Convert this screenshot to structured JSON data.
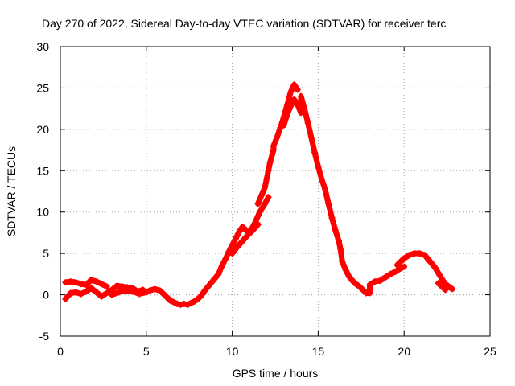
{
  "chart_data": {
    "type": "scatter",
    "title": "Day 270 of 2022, Sidereal Day-to-day VTEC variation (SDTVAR) for receiver terc",
    "xlabel": "GPS time / hours",
    "ylabel": "SDTVAR / TECUs",
    "xlim": [
      0,
      25
    ],
    "ylim": [
      -5,
      30
    ],
    "xticks": [
      0,
      5,
      10,
      15,
      20,
      25
    ],
    "yticks": [
      -5,
      0,
      5,
      10,
      15,
      20,
      25,
      30
    ],
    "grid": true,
    "series": [
      {
        "name": "SDTVAR",
        "color": "#ff0000",
        "marker": "plus",
        "points": [
          [
            0.3,
            1.5
          ],
          [
            0.6,
            1.6
          ],
          [
            0.9,
            1.5
          ],
          [
            1.2,
            1.3
          ],
          [
            1.5,
            1.2
          ],
          [
            1.8,
            1.8
          ],
          [
            2.1,
            1.6
          ],
          [
            2.4,
            1.3
          ],
          [
            2.7,
            1.0
          ],
          [
            0.3,
            -0.5
          ],
          [
            0.6,
            0.2
          ],
          [
            0.9,
            0.3
          ],
          [
            1.2,
            0.1
          ],
          [
            1.5,
            0.4
          ],
          [
            1.8,
            0.8
          ],
          [
            2.1,
            0.3
          ],
          [
            2.4,
            -0.2
          ],
          [
            3.0,
            0.6
          ],
          [
            3.3,
            1.1
          ],
          [
            3.6,
            1.0
          ],
          [
            3.9,
            0.9
          ],
          [
            4.2,
            0.8
          ],
          [
            4.5,
            0.4
          ],
          [
            4.8,
            0.6
          ],
          [
            3.0,
            0.0
          ],
          [
            3.4,
            0.3
          ],
          [
            3.8,
            0.5
          ],
          [
            4.2,
            0.4
          ],
          [
            4.6,
            0.1
          ],
          [
            5.0,
            0.3
          ],
          [
            5.2,
            0.5
          ],
          [
            5.5,
            0.7
          ],
          [
            5.8,
            0.5
          ],
          [
            6.0,
            0.1
          ],
          [
            6.2,
            -0.3
          ],
          [
            6.4,
            -0.7
          ],
          [
            6.6,
            -0.9
          ],
          [
            6.8,
            -1.1
          ],
          [
            7.0,
            -1.2
          ],
          [
            7.2,
            -1.1
          ],
          [
            7.4,
            -1.2
          ],
          [
            7.6,
            -1.0
          ],
          [
            7.8,
            -0.8
          ],
          [
            8.0,
            -0.5
          ],
          [
            8.2,
            -0.1
          ],
          [
            8.4,
            0.5
          ],
          [
            8.6,
            1.0
          ],
          [
            8.8,
            1.5
          ],
          [
            9.0,
            2.0
          ],
          [
            9.2,
            2.5
          ],
          [
            9.4,
            3.5
          ],
          [
            9.6,
            4.3
          ],
          [
            9.8,
            5.2
          ],
          [
            10.0,
            6.0
          ],
          [
            10.2,
            6.8
          ],
          [
            10.4,
            7.6
          ],
          [
            10.6,
            8.2
          ],
          [
            10.8,
            7.8
          ],
          [
            10.0,
            5.0
          ],
          [
            10.3,
            5.8
          ],
          [
            10.6,
            6.5
          ],
          [
            10.9,
            7.2
          ],
          [
            11.2,
            7.8
          ],
          [
            11.5,
            8.5
          ],
          [
            11.0,
            7.5
          ],
          [
            11.3,
            8.6
          ],
          [
            11.6,
            10.0
          ],
          [
            11.9,
            11.0
          ],
          [
            12.1,
            11.8
          ],
          [
            11.5,
            11.0
          ],
          [
            11.7,
            12.0
          ],
          [
            11.9,
            13.0
          ],
          [
            12.0,
            14.0
          ],
          [
            12.1,
            15.0
          ],
          [
            12.2,
            16.0
          ],
          [
            12.4,
            17.5
          ],
          [
            12.4,
            18.0
          ],
          [
            12.6,
            19.0
          ],
          [
            12.8,
            20.2
          ],
          [
            13.0,
            21.5
          ],
          [
            13.2,
            23.0
          ],
          [
            13.4,
            24.5
          ],
          [
            13.6,
            25.4
          ],
          [
            13.8,
            24.8
          ],
          [
            13.0,
            20.5
          ],
          [
            13.2,
            21.8
          ],
          [
            13.4,
            22.8
          ],
          [
            13.6,
            23.6
          ],
          [
            13.8,
            23.0
          ],
          [
            14.0,
            22.0
          ],
          [
            14.0,
            24.0
          ],
          [
            14.2,
            22.5
          ],
          [
            14.4,
            20.8
          ],
          [
            14.6,
            19.0
          ],
          [
            14.8,
            17.2
          ],
          [
            15.0,
            15.5
          ],
          [
            15.2,
            14.0
          ],
          [
            15.4,
            12.8
          ],
          [
            15.6,
            11.0
          ],
          [
            15.8,
            9.3
          ],
          [
            16.0,
            7.8
          ],
          [
            16.2,
            6.5
          ],
          [
            16.3,
            5.5
          ],
          [
            16.4,
            4.0
          ],
          [
            16.6,
            3.0
          ],
          [
            16.8,
            2.2
          ],
          [
            17.0,
            1.7
          ],
          [
            17.2,
            1.3
          ],
          [
            17.4,
            1.0
          ],
          [
            17.6,
            0.6
          ],
          [
            17.8,
            0.2
          ],
          [
            18.0,
            0.2
          ],
          [
            18.0,
            1.2
          ],
          [
            18.3,
            1.6
          ],
          [
            18.6,
            1.7
          ],
          [
            18.9,
            2.1
          ],
          [
            19.2,
            2.5
          ],
          [
            19.5,
            2.8
          ],
          [
            19.8,
            3.2
          ],
          [
            20.0,
            3.4
          ],
          [
            19.6,
            3.6
          ],
          [
            19.8,
            4.0
          ],
          [
            20.0,
            4.4
          ],
          [
            20.3,
            4.8
          ],
          [
            20.6,
            5.0
          ],
          [
            20.9,
            5.0
          ],
          [
            21.2,
            4.8
          ],
          [
            21.4,
            4.3
          ],
          [
            21.6,
            3.8
          ],
          [
            21.8,
            3.3
          ],
          [
            22.0,
            2.6
          ],
          [
            22.2,
            1.9
          ],
          [
            22.4,
            1.3
          ],
          [
            22.6,
            1.0
          ],
          [
            22.8,
            0.7
          ],
          [
            22.0,
            1.4
          ],
          [
            22.2,
            1.0
          ],
          [
            22.4,
            0.6
          ]
        ]
      }
    ]
  }
}
